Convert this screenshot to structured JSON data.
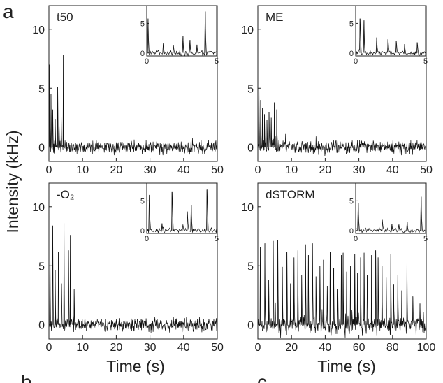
{
  "figure": {
    "panel_letters": [
      "a",
      "b",
      "c"
    ],
    "ylabel": "Intensity (kHz)",
    "xlabel": "Time (s)"
  },
  "chart_data": [
    {
      "type": "line",
      "title": "t50",
      "xlim": [
        0,
        50
      ],
      "ylim": [
        -1.2,
        12
      ],
      "xticks": [
        0,
        10,
        20,
        30,
        40,
        50
      ],
      "yticks": [
        0,
        5,
        10
      ],
      "baseline_noise": 0.45,
      "bursts": [
        {
          "x": 0.2,
          "y": 7.0
        },
        {
          "x": 0.6,
          "y": 4.5
        },
        {
          "x": 1.1,
          "y": 3.2
        },
        {
          "x": 1.9,
          "y": 2.4
        },
        {
          "x": 2.6,
          "y": 5.1
        },
        {
          "x": 3.0,
          "y": 2.0
        },
        {
          "x": 3.6,
          "y": 2.8
        },
        {
          "x": 4.3,
          "y": 7.8
        }
      ],
      "inset": {
        "xlim": [
          0,
          5
        ],
        "ylim": [
          -0.5,
          8
        ],
        "xticks": [
          0,
          5
        ],
        "yticks": [
          0,
          5
        ],
        "bursts": [
          {
            "x": 0.1,
            "y": 5.8
          },
          {
            "x": 1.2,
            "y": 1.6
          },
          {
            "x": 1.9,
            "y": 1.3
          },
          {
            "x": 2.6,
            "y": 2.8
          },
          {
            "x": 3.1,
            "y": 2.2
          },
          {
            "x": 3.6,
            "y": 1.4
          },
          {
            "x": 4.2,
            "y": 7.0
          }
        ]
      }
    },
    {
      "type": "line",
      "title": "ME",
      "xlim": [
        0,
        50
      ],
      "ylim": [
        -1.2,
        12
      ],
      "xticks": [
        0,
        10,
        20,
        30,
        40,
        50
      ],
      "yticks": [
        0,
        5,
        10
      ],
      "baseline_noise": 0.45,
      "bursts": [
        {
          "x": 0.3,
          "y": 6.2
        },
        {
          "x": 0.8,
          "y": 4.0
        },
        {
          "x": 1.4,
          "y": 3.3
        },
        {
          "x": 2.0,
          "y": 2.8
        },
        {
          "x": 2.7,
          "y": 2.3
        },
        {
          "x": 3.3,
          "y": 3.0
        },
        {
          "x": 4.0,
          "y": 2.5
        },
        {
          "x": 4.9,
          "y": 3.8
        },
        {
          "x": 5.6,
          "y": 3.2
        }
      ],
      "inset": {
        "xlim": [
          0,
          5
        ],
        "ylim": [
          -0.5,
          8
        ],
        "xticks": [
          0,
          5
        ],
        "yticks": [
          0,
          5
        ],
        "bursts": [
          {
            "x": 0.3,
            "y": 5.8
          },
          {
            "x": 0.6,
            "y": 5.5
          },
          {
            "x": 1.5,
            "y": 2.6
          },
          {
            "x": 2.3,
            "y": 2.3
          },
          {
            "x": 2.9,
            "y": 2.0
          },
          {
            "x": 3.5,
            "y": 1.5
          },
          {
            "x": 4.4,
            "y": 1.8
          }
        ]
      }
    },
    {
      "type": "line",
      "title": "-O₂",
      "xlim": [
        0,
        50
      ],
      "ylim": [
        -1.2,
        12
      ],
      "xticks": [
        0,
        10,
        20,
        30,
        40,
        50
      ],
      "yticks": [
        0,
        5,
        10
      ],
      "baseline_noise": 0.45,
      "bursts": [
        {
          "x": 0.3,
          "y": 6.8
        },
        {
          "x": 1.1,
          "y": 8.4
        },
        {
          "x": 1.9,
          "y": 4.6
        },
        {
          "x": 2.8,
          "y": 6.2
        },
        {
          "x": 3.7,
          "y": 3.5
        },
        {
          "x": 4.5,
          "y": 8.6
        },
        {
          "x": 5.8,
          "y": 6.3
        },
        {
          "x": 6.4,
          "y": 7.6
        },
        {
          "x": 7.5,
          "y": 3.0
        }
      ],
      "inset": {
        "xlim": [
          0,
          5
        ],
        "ylim": [
          -0.5,
          8
        ],
        "xticks": [
          0,
          5
        ],
        "yticks": [
          0,
          5
        ],
        "bursts": [
          {
            "x": 0.2,
            "y": 6.0
          },
          {
            "x": 1.1,
            "y": 1.2
          },
          {
            "x": 1.8,
            "y": 6.6
          },
          {
            "x": 2.9,
            "y": 3.2
          },
          {
            "x": 3.2,
            "y": 4.3
          },
          {
            "x": 4.3,
            "y": 6.9
          }
        ]
      }
    },
    {
      "type": "line",
      "title": "dSTORM",
      "xlim": [
        0,
        100
      ],
      "ylim": [
        -1.2,
        12
      ],
      "xticks": [
        0,
        20,
        40,
        60,
        80,
        100
      ],
      "yticks": [
        0,
        5,
        10
      ],
      "baseline_noise": 0.65,
      "bursts": [
        {
          "x": 1.5,
          "y": 6.6
        },
        {
          "x": 4.2,
          "y": 6.9
        },
        {
          "x": 6.5,
          "y": 3.8
        },
        {
          "x": 9.1,
          "y": 7.1
        },
        {
          "x": 11.8,
          "y": 7.2
        },
        {
          "x": 14.6,
          "y": 4.9
        },
        {
          "x": 17.2,
          "y": 6.2
        },
        {
          "x": 19.4,
          "y": 3.5
        },
        {
          "x": 21.5,
          "y": 5.7
        },
        {
          "x": 23.8,
          "y": 6.3
        },
        {
          "x": 26.0,
          "y": 4.2
        },
        {
          "x": 28.3,
          "y": 6.8
        },
        {
          "x": 30.1,
          "y": 5.9
        },
        {
          "x": 32.4,
          "y": 6.9
        },
        {
          "x": 34.5,
          "y": 4.1
        },
        {
          "x": 36.8,
          "y": 5.0
        },
        {
          "x": 38.9,
          "y": 5.5
        },
        {
          "x": 41.2,
          "y": 3.3
        },
        {
          "x": 43.0,
          "y": 6.2
        },
        {
          "x": 45.1,
          "y": 4.8
        },
        {
          "x": 47.4,
          "y": 3.0
        },
        {
          "x": 49.6,
          "y": 5.9
        },
        {
          "x": 50.7,
          "y": 6.1
        },
        {
          "x": 52.8,
          "y": 4.5
        },
        {
          "x": 55.0,
          "y": 5.0
        },
        {
          "x": 57.6,
          "y": 6.0
        },
        {
          "x": 59.2,
          "y": 4.4
        },
        {
          "x": 61.0,
          "y": 5.7
        },
        {
          "x": 63.1,
          "y": 6.1
        },
        {
          "x": 64.9,
          "y": 4.2
        },
        {
          "x": 67.5,
          "y": 5.9
        },
        {
          "x": 69.9,
          "y": 6.3
        },
        {
          "x": 71.4,
          "y": 5.7
        },
        {
          "x": 73.8,
          "y": 5.0
        },
        {
          "x": 76.2,
          "y": 4.0
        },
        {
          "x": 78.9,
          "y": 6.0
        },
        {
          "x": 80.7,
          "y": 3.4
        },
        {
          "x": 83.1,
          "y": 4.2
        },
        {
          "x": 85.4,
          "y": 2.9
        },
        {
          "x": 88.6,
          "y": 5.7
        },
        {
          "x": 92.0,
          "y": 2.4
        },
        {
          "x": 96.3,
          "y": 1.8
        }
      ],
      "inset": {
        "xlim": [
          0,
          5
        ],
        "ylim": [
          -0.5,
          8
        ],
        "xticks": [
          0,
          5
        ],
        "yticks": [
          0,
          5
        ],
        "bursts": [
          {
            "x": 0.2,
            "y": 4.7
          },
          {
            "x": 1.9,
            "y": 1.8
          },
          {
            "x": 2.6,
            "y": 1.1
          },
          {
            "x": 3.1,
            "y": 1.0
          },
          {
            "x": 3.7,
            "y": 1.4
          },
          {
            "x": 4.7,
            "y": 5.7
          }
        ]
      }
    }
  ]
}
